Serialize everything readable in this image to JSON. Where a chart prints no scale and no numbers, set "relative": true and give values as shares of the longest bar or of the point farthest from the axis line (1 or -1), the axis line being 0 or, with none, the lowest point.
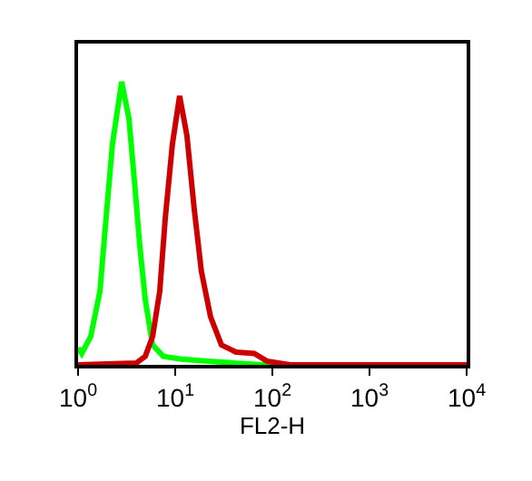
{
  "chart_data": {
    "type": "line",
    "relative": true,
    "xlabel": "FL2-H",
    "log": "x",
    "xlim": [
      1,
      10000
    ],
    "xticks": [
      {
        "value": 1,
        "label": "10$^{0}$"
      },
      {
        "value": 10,
        "label": "10$^{1}$"
      },
      {
        "value": 100,
        "label": "10$^{2}$"
      },
      {
        "value": 1000,
        "label": "10$^{3}$"
      },
      {
        "value": 10000,
        "label": "10$^{4}$"
      }
    ],
    "series": [
      {
        "color": "#00ff00",
        "x": [
          1,
          1.09,
          1.35,
          1.68,
          1.91,
          2.26,
          2.81,
          3.34,
          3.8,
          4.32,
          4.92,
          5.85,
          7.55,
          11.6,
          22.2,
          42.3,
          80.7,
          10000
        ],
        "values": [
          0.06,
          0.04,
          0.1,
          0.26,
          0.49,
          0.78,
          1,
          0.87,
          0.65,
          0.42,
          0.23,
          0.07,
          0.03,
          0.02,
          0.013,
          0.006,
          0,
          0
        ]
      },
      {
        "color": "#cc0000",
        "x": [
          1,
          3.96,
          4.92,
          5.85,
          6.93,
          7.91,
          9.36,
          11.1,
          13.2,
          15.7,
          18.6,
          23.1,
          29.9,
          42.3,
          65,
          88,
          153,
          10000
        ],
        "values": [
          0,
          0.006,
          0.03,
          0.1,
          0.26,
          0.52,
          0.78,
          0.95,
          0.81,
          0.55,
          0.33,
          0.17,
          0.07,
          0.045,
          0.04,
          0.013,
          0,
          0
        ]
      }
    ]
  }
}
